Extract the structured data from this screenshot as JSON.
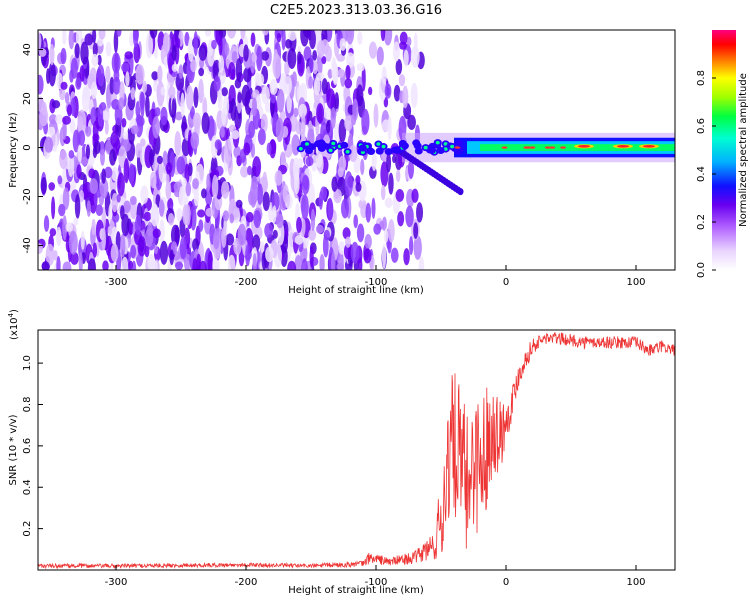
{
  "title": "C2E5.2023.313.03.36.G16",
  "colors": {
    "snr_line": "#ee3333",
    "colormap": [
      "#ffffff",
      "#e9d4ff",
      "#b060ff",
      "#6a00f0",
      "#1010ff",
      "#00b0ff",
      "#00ffd0",
      "#00ff40",
      "#a0ff00",
      "#ffff00",
      "#ff8000",
      "#ff0000",
      "#ff0080"
    ]
  },
  "chart_data": [
    {
      "type": "heatmap",
      "title": "",
      "xlabel": "Height of straight line (km)",
      "ylabel": "Frequency (Hz)",
      "xlim": [
        -360,
        130
      ],
      "ylim": [
        -50,
        48
      ],
      "xticks": [
        -300,
        -200,
        -100,
        0,
        100
      ],
      "yticks": [
        -40,
        -20,
        0,
        20,
        40
      ],
      "grid": false,
      "colorbar": {
        "label": "Normalized spectral amplitude",
        "range": [
          0.0,
          1.0
        ],
        "ticks": [
          "0.0",
          "0.2",
          "0.4",
          "0.6",
          "0.8"
        ]
      },
      "features": {
        "noise_region_x": [
          -360,
          -80
        ],
        "signal_band_center_hz": 0,
        "signal_band_halfwidth_hz": 4,
        "branch_segment": {
          "x": [
            -80,
            -35
          ],
          "y": [
            -2,
            -18
          ]
        },
        "peak_x": [
          60,
          90,
          110
        ]
      }
    },
    {
      "type": "line",
      "title": "",
      "xlabel": "Height of straight line (km)",
      "ylabel": "SNR (10 * v/v)",
      "yscale_label": "(x10",
      "yscale_exp": "4",
      "yscale_close": ")",
      "xlim": [
        -360,
        130
      ],
      "ylim": [
        0,
        1.16
      ],
      "xticks": [
        -300,
        -200,
        -100,
        0,
        100
      ],
      "yticks": [
        "0.2",
        "0.4",
        "0.6",
        "0.8",
        "1.0"
      ],
      "grid": false,
      "series": [
        {
          "x": [
            -360,
            -300,
            -200,
            -150,
            -110,
            -105,
            -90,
            -70,
            -55,
            -48,
            -45,
            -40,
            -35,
            -30,
            -25,
            -20,
            -15,
            -10,
            -5,
            0,
            5,
            10,
            20,
            30,
            40,
            60,
            80,
            100,
            110,
            120,
            130
          ],
          "y": [
            0.02,
            0.02,
            0.025,
            0.02,
            0.03,
            0.06,
            0.04,
            0.06,
            0.12,
            0.3,
            0.55,
            0.62,
            0.5,
            0.4,
            0.55,
            0.5,
            0.6,
            0.7,
            0.65,
            0.72,
            0.82,
            0.95,
            1.08,
            1.12,
            1.12,
            1.1,
            1.1,
            1.1,
            1.06,
            1.08,
            1.06
          ],
          "noise_amplitude": [
            0.01,
            0.01,
            0.01,
            0.01,
            0.015,
            0.03,
            0.02,
            0.03,
            0.08,
            0.25,
            0.35,
            0.35,
            0.4,
            0.35,
            0.35,
            0.35,
            0.3,
            0.22,
            0.2,
            0.12,
            0.08,
            0.06,
            0.04,
            0.03,
            0.03,
            0.03,
            0.03,
            0.03,
            0.03,
            0.03,
            0.03
          ]
        }
      ]
    }
  ]
}
